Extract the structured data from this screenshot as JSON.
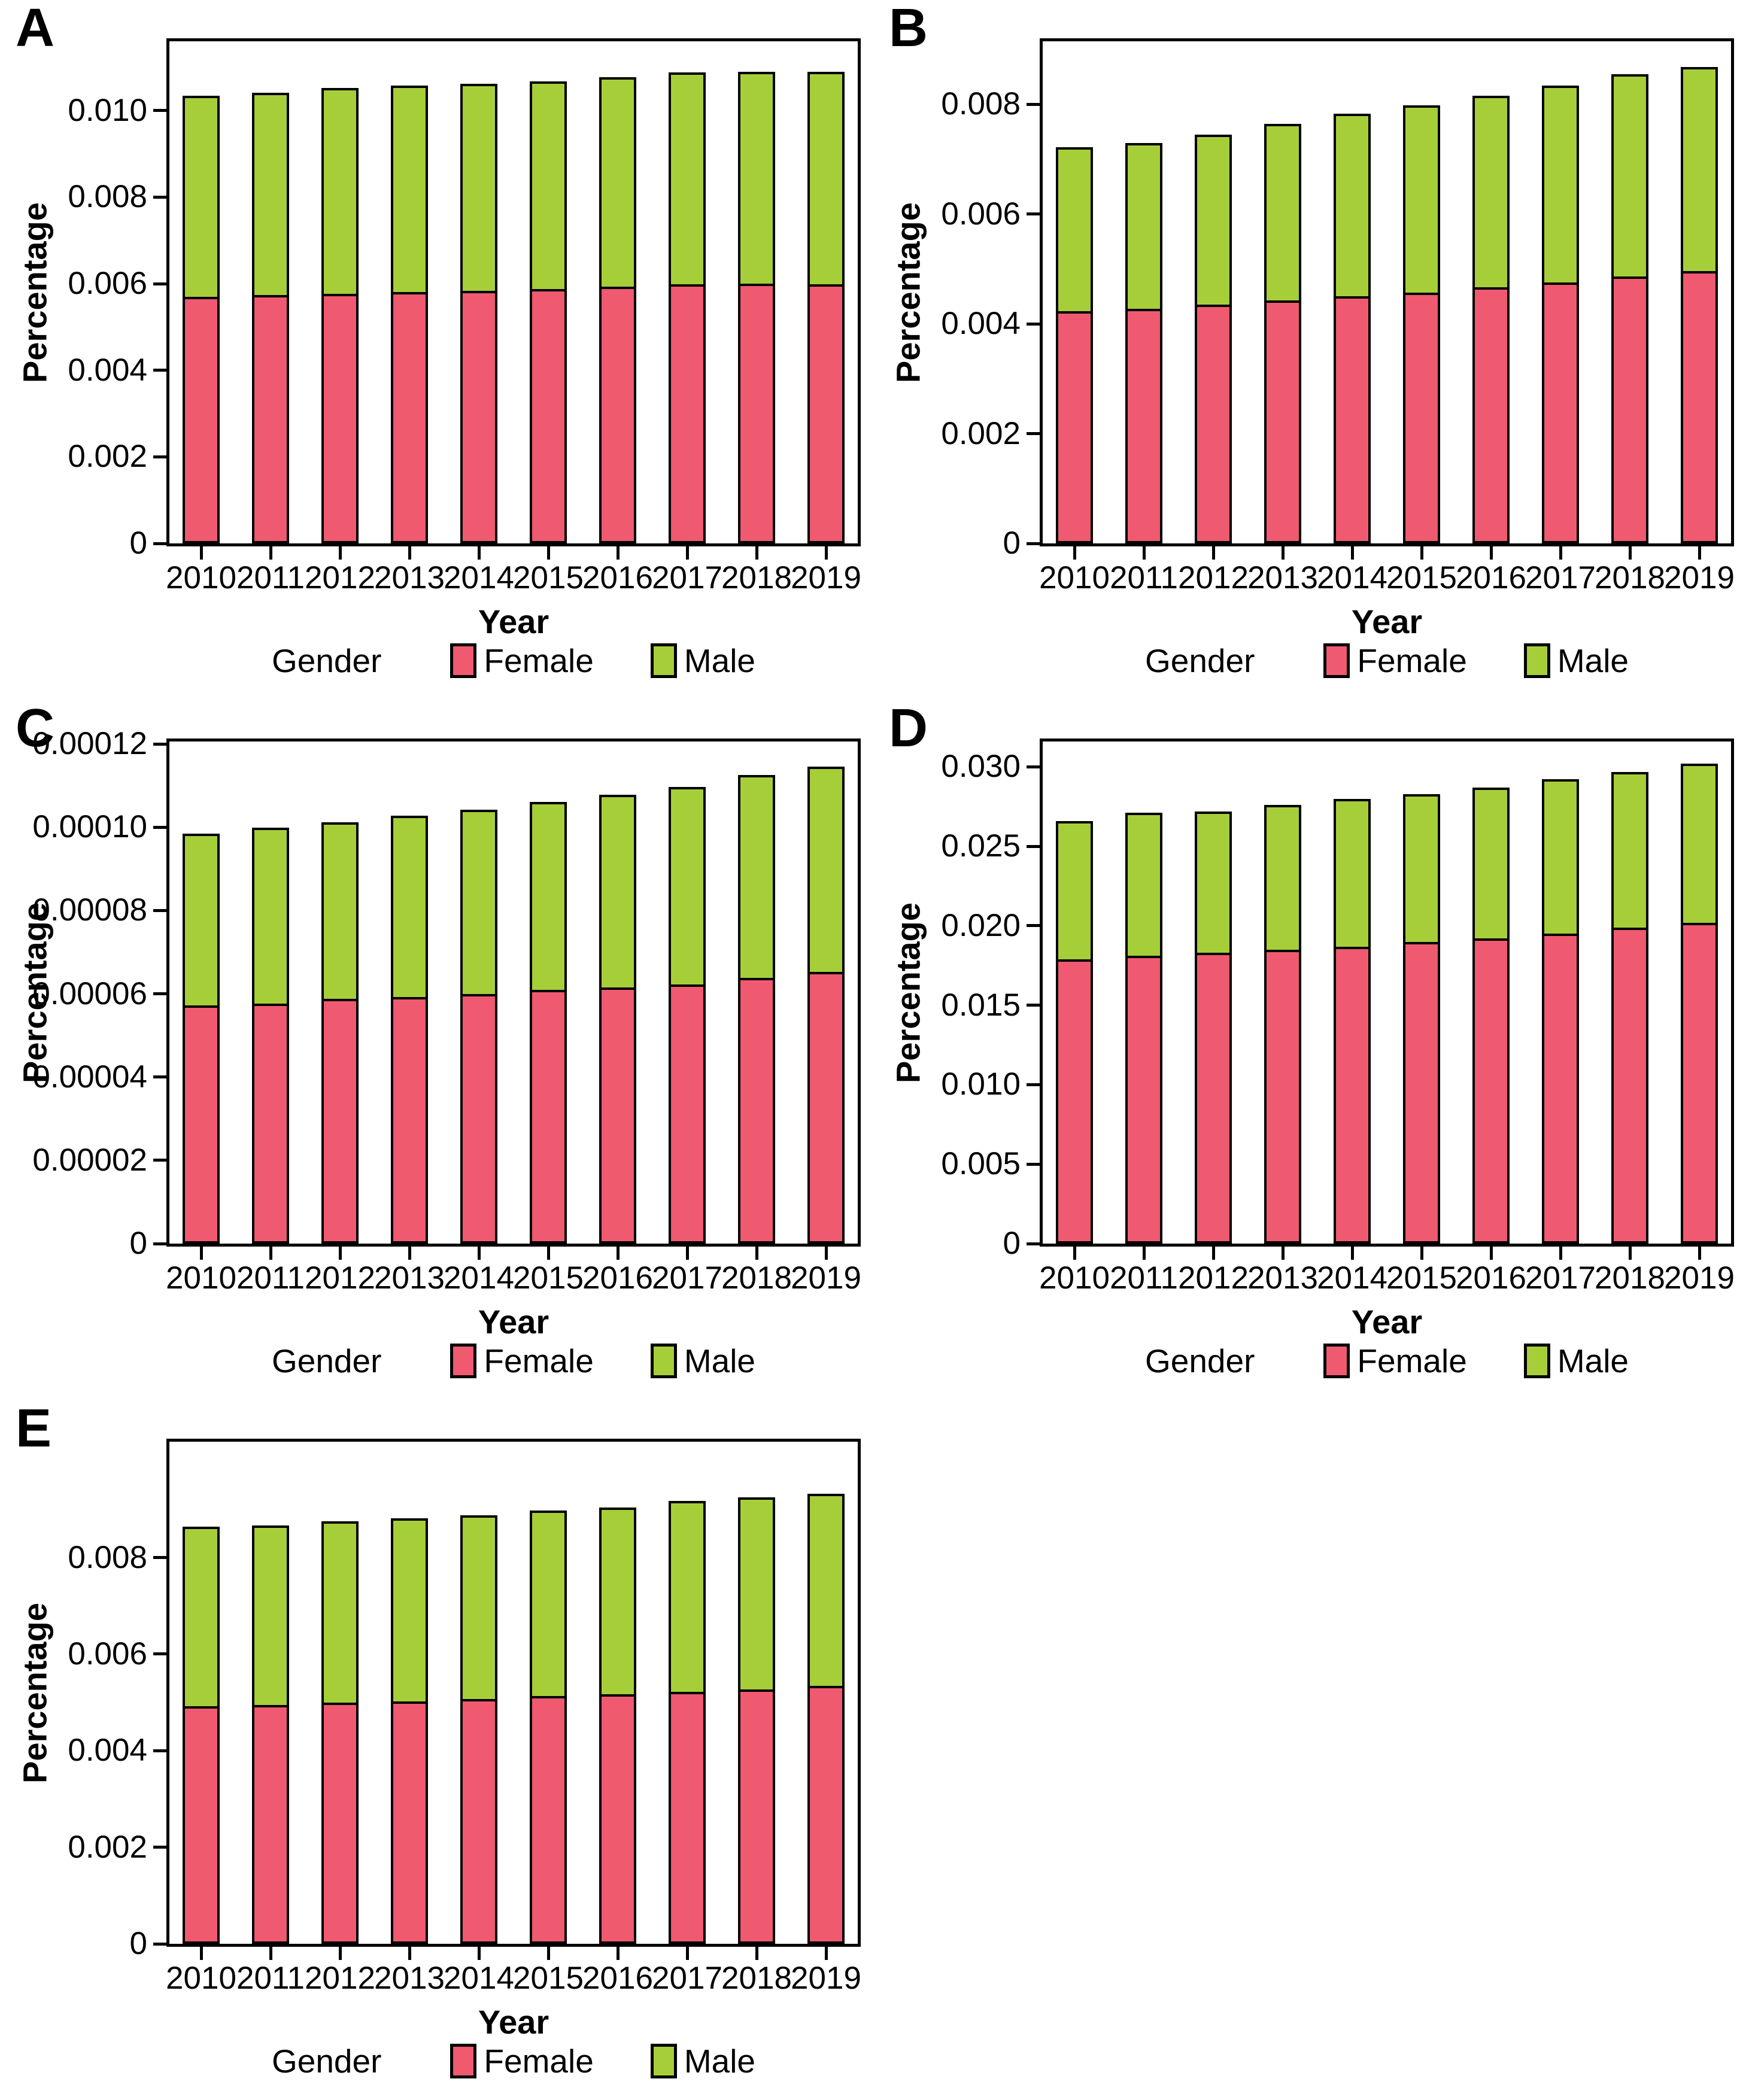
{
  "page": {
    "background": "#ffffff"
  },
  "axis_titles": {
    "x": "Year",
    "y": "Percentage"
  },
  "legend": {
    "title": "Gender",
    "items": [
      {
        "label": "Female",
        "color": "#EF5A70"
      },
      {
        "label": "Male",
        "color": "#A6CE39"
      }
    ]
  },
  "colors": {
    "female": "#EF5A70",
    "male": "#A6CE39",
    "stroke": "#000000",
    "frame": "#000000"
  },
  "years": [
    "2010",
    "2011",
    "2012",
    "2013",
    "2014",
    "2015",
    "2016",
    "2017",
    "2018",
    "2019"
  ],
  "chart_data": [
    {
      "id": "A",
      "letter": "A",
      "type": "bar",
      "stacked": true,
      "categories": [
        2010,
        2011,
        2012,
        2013,
        2014,
        2015,
        2016,
        2017,
        2018,
        2019
      ],
      "series": [
        {
          "name": "Female",
          "color": "#EF5A70",
          "values": [
            0.0057,
            0.00574,
            0.00577,
            0.0058,
            0.00584,
            0.00588,
            0.00593,
            0.00598,
            0.006,
            0.00598
          ]
        },
        {
          "name": "Male",
          "color": "#A6CE39",
          "values": [
            0.00465,
            0.00467,
            0.00475,
            0.00477,
            0.00478,
            0.0048,
            0.00484,
            0.0049,
            0.0049,
            0.00491
          ]
        }
      ],
      "xlabel": "Year",
      "ylabel": "Percentage",
      "legend_title": "Gender",
      "legend_position": "bottom",
      "ylim": [
        0,
        0.0116
      ],
      "yticks": [
        {
          "v": 0,
          "label": "0"
        },
        {
          "v": 0.002,
          "label": "0.002"
        },
        {
          "v": 0.004,
          "label": "0.004"
        },
        {
          "v": 0.006,
          "label": "0.006"
        },
        {
          "v": 0.008,
          "label": "0.008"
        },
        {
          "v": 0.01,
          "label": "0.010"
        }
      ]
    },
    {
      "id": "B",
      "letter": "B",
      "type": "bar",
      "stacked": true,
      "categories": [
        2010,
        2011,
        2012,
        2013,
        2014,
        2015,
        2016,
        2017,
        2018,
        2019
      ],
      "series": [
        {
          "name": "Female",
          "color": "#EF5A70",
          "values": [
            0.00423,
            0.00428,
            0.00435,
            0.00443,
            0.0045,
            0.00457,
            0.00467,
            0.00476,
            0.00486,
            0.00496
          ]
        },
        {
          "name": "Male",
          "color": "#A6CE39",
          "values": [
            0.00299,
            0.00302,
            0.0031,
            0.00322,
            0.00333,
            0.00341,
            0.00349,
            0.00359,
            0.00369,
            0.00372
          ]
        }
      ],
      "xlabel": "Year",
      "ylabel": "Percentage",
      "legend_title": "Gender",
      "legend_position": "bottom",
      "ylim": [
        0,
        0.00915
      ],
      "yticks": [
        {
          "v": 0,
          "label": "0"
        },
        {
          "v": 0.002,
          "label": "0.002"
        },
        {
          "v": 0.004,
          "label": "0.004"
        },
        {
          "v": 0.006,
          "label": "0.006"
        },
        {
          "v": 0.008,
          "label": "0.008"
        }
      ]
    },
    {
      "id": "C",
      "letter": "C",
      "type": "bar",
      "stacked": true,
      "categories": [
        2010,
        2011,
        2012,
        2013,
        2014,
        2015,
        2016,
        2017,
        2018,
        2019
      ],
      "series": [
        {
          "name": "Female",
          "color": "#EF5A70",
          "values": [
            5.72e-05,
            5.77e-05,
            5.88e-05,
            5.92e-05,
            6e-05,
            6.1e-05,
            6.15e-05,
            6.23e-05,
            6.38e-05,
            6.52e-05
          ]
        },
        {
          "name": "Male",
          "color": "#A6CE39",
          "values": [
            4.13e-05,
            4.22e-05,
            4.24e-05,
            4.36e-05,
            4.43e-05,
            4.52e-05,
            4.63e-05,
            4.75e-05,
            4.87e-05,
            4.93e-05
          ]
        }
      ],
      "xlabel": "Year",
      "ylabel": "Percentage",
      "legend_title": "Gender",
      "legend_position": "bottom",
      "ylim": [
        0,
        0.0001206
      ],
      "yticks": [
        {
          "v": 0,
          "label": "0"
        },
        {
          "v": 2e-05,
          "label": "0.00002"
        },
        {
          "v": 4e-05,
          "label": "0.00004"
        },
        {
          "v": 6e-05,
          "label": "0.00006"
        },
        {
          "v": 8e-05,
          "label": "0.00008"
        },
        {
          "v": 0.0001,
          "label": "0.00010"
        },
        {
          "v": 0.00012,
          "label": "0.00012"
        }
      ]
    },
    {
      "id": "D",
      "letter": "D",
      "type": "bar",
      "stacked": true,
      "categories": [
        2010,
        2011,
        2012,
        2013,
        2014,
        2015,
        2016,
        2017,
        2018,
        2019
      ],
      "series": [
        {
          "name": "Female",
          "color": "#EF5A70",
          "values": [
            0.0179,
            0.0181,
            0.0183,
            0.0185,
            0.0187,
            0.019,
            0.0192,
            0.0195,
            0.0199,
            0.0202
          ]
        },
        {
          "name": "Male",
          "color": "#A6CE39",
          "values": [
            0.0087,
            0.009,
            0.0089,
            0.0091,
            0.0093,
            0.0093,
            0.0095,
            0.0097,
            0.0098,
            0.01
          ]
        }
      ],
      "xlabel": "Year",
      "ylabel": "Percentage",
      "legend_title": "Gender",
      "legend_position": "bottom",
      "ylim": [
        0,
        0.0316
      ],
      "yticks": [
        {
          "v": 0,
          "label": "0"
        },
        {
          "v": 0.005,
          "label": "0.005"
        },
        {
          "v": 0.01,
          "label": "0.010"
        },
        {
          "v": 0.015,
          "label": "0.015"
        },
        {
          "v": 0.02,
          "label": "0.020"
        },
        {
          "v": 0.025,
          "label": "0.025"
        },
        {
          "v": 0.03,
          "label": "0.030"
        }
      ]
    },
    {
      "id": "E",
      "letter": "E",
      "type": "bar",
      "stacked": true,
      "categories": [
        2010,
        2011,
        2012,
        2013,
        2014,
        2015,
        2016,
        2017,
        2018,
        2019
      ],
      "series": [
        {
          "name": "Female",
          "color": "#EF5A70",
          "values": [
            0.00492,
            0.00495,
            0.005,
            0.00502,
            0.00507,
            0.00513,
            0.00517,
            0.00522,
            0.00527,
            0.00534
          ]
        },
        {
          "name": "Male",
          "color": "#A6CE39",
          "values": [
            0.00372,
            0.00372,
            0.00376,
            0.00379,
            0.00381,
            0.00384,
            0.00387,
            0.00395,
            0.00398,
            0.00398
          ]
        }
      ],
      "xlabel": "Year",
      "ylabel": "Percentage",
      "legend_title": "Gender",
      "legend_position": "bottom",
      "ylim": [
        0,
        0.0104
      ],
      "yticks": [
        {
          "v": 0,
          "label": "0"
        },
        {
          "v": 0.002,
          "label": "0.002"
        },
        {
          "v": 0.004,
          "label": "0.004"
        },
        {
          "v": 0.006,
          "label": "0.006"
        },
        {
          "v": 0.008,
          "label": "0.008"
        }
      ]
    }
  ]
}
